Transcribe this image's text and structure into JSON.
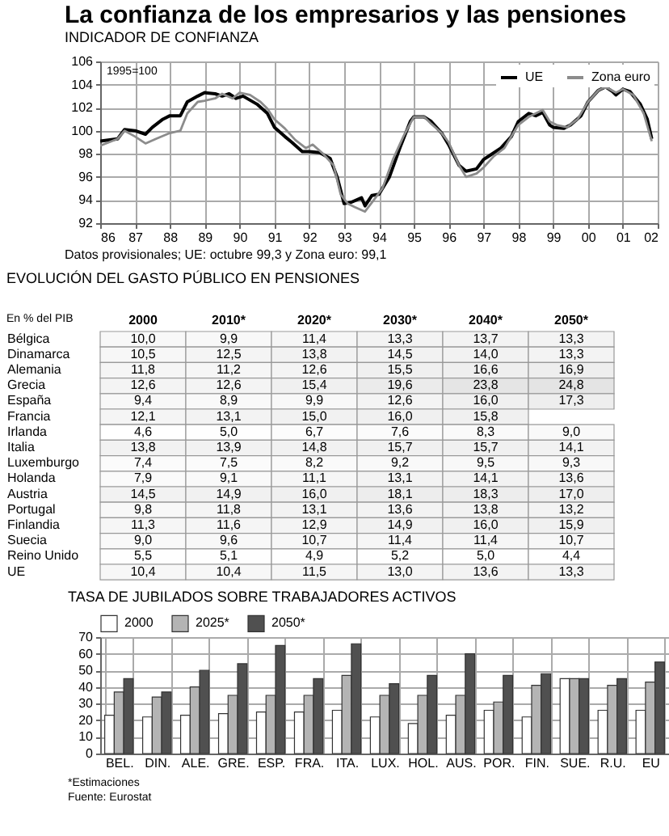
{
  "chart_data": [
    {
      "type": "line",
      "title": "La confianza de los empresarios y las pensiones",
      "subtitle": "INDICADOR DE CONFIANZA",
      "annotations": [
        "1995=100",
        "Datos provisionales; UE: octubre 99,3 y Zona euro: 99,1"
      ],
      "legend": "top right",
      "grid": true,
      "xlim": [
        1986,
        2002
      ],
      "xticks": [
        {
          "value": 1986,
          "label": "86"
        },
        {
          "value": 1987,
          "label": "87"
        },
        {
          "value": 1988,
          "label": "88"
        },
        {
          "value": 1989,
          "label": "89"
        },
        {
          "value": 1990,
          "label": "90"
        },
        {
          "value": 1991,
          "label": "91"
        },
        {
          "value": 1992,
          "label": "92"
        },
        {
          "value": 1993,
          "label": "93"
        },
        {
          "value": 1994,
          "label": "94"
        },
        {
          "value": 1995,
          "label": "95"
        },
        {
          "value": 1996,
          "label": "96"
        },
        {
          "value": 1997,
          "label": "97"
        },
        {
          "value": 1998,
          "label": "98"
        },
        {
          "value": 1999,
          "label": "99"
        },
        {
          "value": 2000,
          "label": "00"
        },
        {
          "value": 2001,
          "label": "01"
        },
        {
          "value": 2002,
          "label": "02"
        }
      ],
      "ylim": [
        92,
        106
      ],
      "yticks": [
        92,
        94,
        96,
        98,
        100,
        102,
        104,
        106
      ],
      "series": [
        {
          "name": "UE",
          "color": "#000000",
          "x": [
            1986.0,
            1986.5,
            1986.7,
            1987.0,
            1987.3,
            1987.5,
            1987.8,
            1988.0,
            1988.3,
            1988.5,
            1988.8,
            1989.0,
            1989.3,
            1989.5,
            1989.7,
            1989.9,
            1990.1,
            1990.5,
            1990.8,
            1991.0,
            1991.3,
            1991.5,
            1991.8,
            1992.0,
            1992.3,
            1992.6,
            1992.8,
            1993.0,
            1993.2,
            1993.5,
            1993.6,
            1993.8,
            1994.0,
            1994.3,
            1994.6,
            1994.9,
            1995.0,
            1995.3,
            1995.5,
            1995.8,
            1996.0,
            1996.3,
            1996.5,
            1996.8,
            1997.0,
            1997.2,
            1997.5,
            1997.8,
            1998.0,
            1998.3,
            1998.5,
            1998.7,
            1998.9,
            1999.0,
            1999.3,
            1999.5,
            1999.8,
            2000.0,
            2000.3,
            2000.5,
            2000.7,
            2000.8,
            2001.0,
            2001.2,
            2001.5,
            2001.7,
            2001.83
          ],
          "values": [
            99.1,
            99.3,
            100.1,
            100.0,
            99.7,
            100.3,
            101.0,
            101.3,
            101.3,
            102.5,
            103.0,
            103.3,
            103.2,
            103.0,
            103.2,
            102.8,
            103.0,
            102.3,
            101.5,
            100.3,
            99.5,
            99.0,
            98.2,
            98.2,
            98.1,
            97.6,
            96.0,
            93.7,
            93.8,
            94.2,
            93.5,
            94.4,
            94.5,
            96.0,
            98.5,
            100.8,
            101.2,
            101.2,
            100.8,
            99.8,
            98.8,
            97.0,
            96.5,
            96.7,
            97.5,
            97.9,
            98.5,
            99.5,
            100.8,
            101.5,
            101.3,
            101.6,
            100.5,
            100.3,
            100.2,
            100.5,
            101.3,
            102.5,
            103.5,
            103.8,
            103.4,
            103.1,
            103.6,
            103.4,
            102.3,
            101.0,
            99.3
          ]
        },
        {
          "name": "Zona euro",
          "color": "#8c8c8c",
          "x": [
            1986.0,
            1986.5,
            1986.7,
            1987.0,
            1987.3,
            1987.6,
            1988.0,
            1988.3,
            1988.5,
            1988.8,
            1989.0,
            1989.3,
            1989.5,
            1989.8,
            1990.0,
            1990.3,
            1990.6,
            1990.8,
            1991.0,
            1991.3,
            1991.6,
            1991.9,
            1992.1,
            1992.4,
            1992.7,
            1992.9,
            1993.1,
            1993.3,
            1993.6,
            1993.8,
            1994.1,
            1994.4,
            1994.7,
            1995.0,
            1995.3,
            1995.5,
            1995.8,
            1996.0,
            1996.3,
            1996.5,
            1996.8,
            1997.0,
            1997.3,
            1997.6,
            1998.0,
            1998.3,
            1998.7,
            1998.9,
            1999.1,
            1999.4,
            1999.7,
            2000.0,
            2000.3,
            2000.5,
            2000.8,
            2001.0,
            2001.3,
            2001.6,
            2001.83
          ],
          "values": [
            98.7,
            99.3,
            100.0,
            99.5,
            98.9,
            99.3,
            99.8,
            100.0,
            101.5,
            102.5,
            102.6,
            102.8,
            103.2,
            102.8,
            103.3,
            103.1,
            102.5,
            101.9,
            101.0,
            100.2,
            99.2,
            98.5,
            98.8,
            98.0,
            97.0,
            94.5,
            93.7,
            93.4,
            93.0,
            93.8,
            95.0,
            97.5,
            99.5,
            101.2,
            101.2,
            100.6,
            99.8,
            99.0,
            97.0,
            96.0,
            96.3,
            96.8,
            97.8,
            98.5,
            100.5,
            101.2,
            101.8,
            100.8,
            100.5,
            100.3,
            101.0,
            102.5,
            103.5,
            103.8,
            103.3,
            103.6,
            103.1,
            101.5,
            99.1
          ]
        }
      ]
    },
    {
      "type": "heatmap",
      "title": "EVOLUCIÓN DEL GASTO PÚBLICO EN PENSIONES",
      "annotations": [
        "En % del PIB"
      ],
      "cell_labels": [
        [
          "10,0",
          "9,9",
          "11,4",
          "13,3",
          "13,7",
          "13,3"
        ],
        [
          "10,5",
          "12,5",
          "13,8",
          "14,5",
          "14,0",
          "13,3"
        ],
        [
          "11,8",
          "11,2",
          "12,6",
          "15,5",
          "16,6",
          "16,9"
        ],
        [
          "12,6",
          "12,6",
          "15,4",
          "19,6",
          "23,8",
          "24,8"
        ],
        [
          "9,4",
          "8,9",
          "9,9",
          "12,6",
          "16,0",
          "17,3"
        ],
        [
          "12,1",
          "13,1",
          "15,0",
          "16,0",
          "15,8",
          null
        ],
        [
          "4,6",
          "5,0",
          "6,7",
          "7,6",
          "8,3",
          "9,0"
        ],
        [
          "13,8",
          "13,9",
          "14,8",
          "15,7",
          "15,7",
          "14,1"
        ],
        [
          "7,4",
          "7,5",
          "8,2",
          "9,2",
          "9,5",
          "9,3"
        ],
        [
          "7,9",
          "9,1",
          "11,1",
          "13,1",
          "14,1",
          "13,6"
        ],
        [
          "14,5",
          "14,9",
          "16,0",
          "18,1",
          "18,3",
          "17,0"
        ],
        [
          "9,8",
          "11,8",
          "13,1",
          "13,6",
          "13,8",
          "13,2"
        ],
        [
          "11,3",
          "11,6",
          "12,9",
          "14,9",
          "16,0",
          "15,9"
        ],
        [
          "9,0",
          "9,6",
          "10,7",
          "11,4",
          "11,4",
          "10,7"
        ],
        [
          "5,5",
          "5,1",
          "4,9",
          "5,2",
          "5,0",
          "4,4"
        ],
        [
          "10,4",
          "10,4",
          "11,5",
          "13,0",
          "13,6",
          "13,3"
        ]
      ],
      "categories": [
        "2000",
        "2010*",
        "2020*",
        "2030*",
        "2040*",
        "2050*"
      ],
      "y_categories": [
        "Bélgica",
        "Dinamarca",
        "Alemania",
        "Grecia",
        "España",
        "Francia",
        "Irlanda",
        "Italia",
        "Luxemburgo",
        "Holanda",
        "Austria",
        "Portugal",
        "Finlandia",
        "Suecia",
        "Reino Unido",
        "UE"
      ],
      "cells": [
        [
          10.0,
          9.9,
          11.4,
          13.3,
          13.7,
          13.3
        ],
        [
          10.5,
          12.5,
          13.8,
          14.5,
          14.0,
          13.3
        ],
        [
          11.8,
          11.2,
          12.6,
          15.5,
          16.6,
          16.9
        ],
        [
          12.6,
          12.6,
          15.4,
          19.6,
          23.8,
          24.8
        ],
        [
          9.4,
          8.9,
          9.9,
          12.6,
          16.0,
          17.3
        ],
        [
          12.1,
          13.1,
          15.0,
          16.0,
          15.8,
          null
        ],
        [
          4.6,
          5.0,
          6.7,
          7.6,
          8.3,
          9.0
        ],
        [
          13.8,
          13.9,
          14.8,
          15.7,
          15.7,
          14.1
        ],
        [
          7.4,
          7.5,
          8.2,
          9.2,
          9.5,
          9.3
        ],
        [
          7.9,
          9.1,
          11.1,
          13.1,
          14.1,
          13.6
        ],
        [
          14.5,
          14.9,
          16.0,
          18.1,
          18.3,
          17.0
        ],
        [
          9.8,
          11.8,
          13.1,
          13.6,
          13.8,
          13.2
        ],
        [
          11.3,
          11.6,
          12.9,
          14.9,
          16.0,
          15.9
        ],
        [
          9.0,
          9.6,
          10.7,
          11.4,
          11.4,
          10.7
        ],
        [
          5.5,
          5.1,
          4.9,
          5.2,
          5.0,
          4.4
        ],
        [
          10.4,
          10.4,
          11.5,
          13.0,
          13.6,
          13.3
        ]
      ]
    },
    {
      "type": "bar",
      "title": "TASA DE JUBILADOS SOBRE TRABAJADORES ACTIVOS",
      "annotations": [
        "*Estimaciones",
        "Fuente: Eurostat"
      ],
      "legend": "top left",
      "grid": true,
      "categories": [
        "BEL.",
        "DIN.",
        "ALE.",
        "GRE.",
        "ESP.",
        "FRA.",
        "ITA.",
        "LUX.",
        "HOL.",
        "AUS.",
        "POR.",
        "FIN.",
        "SUE.",
        "R.U.",
        "EU"
      ],
      "ylim": [
        0,
        70
      ],
      "yticks": [
        0,
        10,
        20,
        30,
        40,
        50,
        60,
        70
      ],
      "series": [
        {
          "name": "2000",
          "color": "#ffffff",
          "values": [
            23,
            22,
            23,
            24,
            25,
            25,
            26,
            22,
            18,
            23,
            26,
            22,
            45,
            26,
            26
          ]
        },
        {
          "name": "2025*",
          "color": "#b4b4b4",
          "values": [
            37,
            34,
            40,
            35,
            35,
            35,
            47,
            35,
            35,
            35,
            31,
            41,
            45,
            41,
            43
          ]
        },
        {
          "name": "2050*",
          "color": "#505050",
          "values": [
            45,
            37,
            50,
            54,
            65,
            45,
            66,
            42,
            47,
            60,
            47,
            48,
            45,
            45,
            55
          ]
        }
      ]
    }
  ]
}
